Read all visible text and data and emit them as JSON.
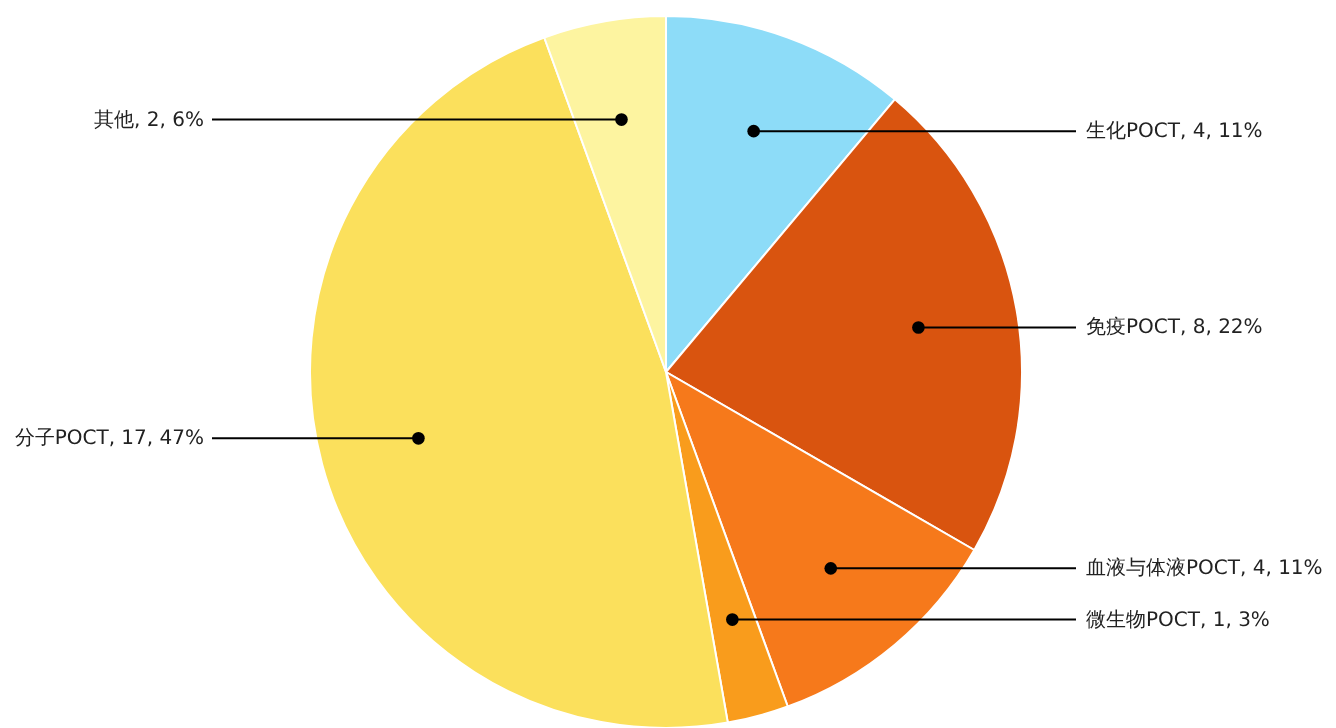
{
  "chart_data": {
    "type": "pie",
    "categories": [
      "生化POCT",
      "免疫POCT",
      "血液与体液POCT",
      "微生物POCT",
      "分子POCT",
      "其他"
    ],
    "values": [
      4,
      8,
      4,
      1,
      17,
      2
    ],
    "colors": [
      "#8ddcf8",
      "#d9540f",
      "#f6791b",
      "#f99c1c",
      "#fbe05c",
      "#fdf4a0"
    ],
    "value_labels": [
      "4, 11%",
      "8, 22%",
      "4, 11%",
      "1, 3%",
      "17, 47%",
      "2, 6%"
    ]
  }
}
